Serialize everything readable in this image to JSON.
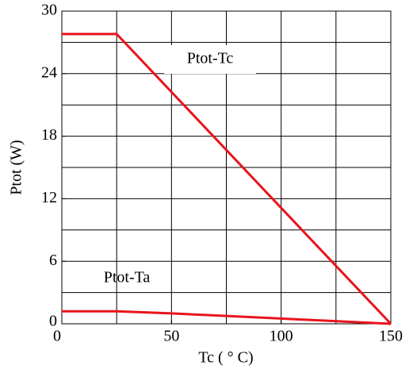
{
  "chart_data": {
    "type": "line",
    "xlabel": "Tc ( ° C)",
    "ylabel": "Ptot (W)",
    "xlim": [
      0,
      150
    ],
    "ylim": [
      0,
      30
    ],
    "xticks": [
      0,
      50,
      100,
      150
    ],
    "yticks": [
      0,
      6,
      12,
      18,
      24,
      30
    ],
    "xgrid": [
      25,
      50,
      75,
      100,
      125,
      150
    ],
    "ygrid": [
      3,
      6,
      9,
      12,
      15,
      18,
      21,
      24,
      27,
      30
    ],
    "grid": true,
    "series": [
      {
        "name": "Ptot-Tc",
        "color": "#e8141c",
        "x": [
          0,
          25,
          150
        ],
        "values": [
          27.8,
          27.8,
          0
        ]
      },
      {
        "name": "Ptot-Ta",
        "color": "#e8141c",
        "x": [
          0,
          25,
          50,
          100,
          150
        ],
        "values": [
          1.2,
          1.2,
          1.0,
          0.5,
          0
        ]
      }
    ]
  }
}
